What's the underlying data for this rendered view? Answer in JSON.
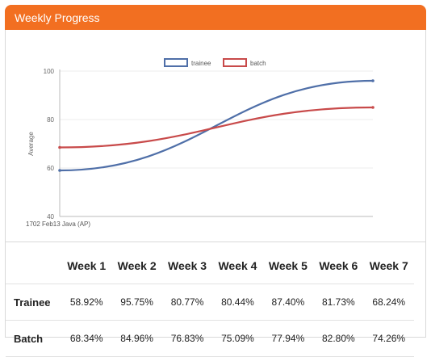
{
  "header": {
    "title": "Weekly Progress",
    "accent": "#f26f21"
  },
  "chart_data": {
    "type": "line",
    "ylabel": "Average",
    "xlabel": "",
    "x_tick_labels": [
      "1702 Feb13 Java (AP)"
    ],
    "ylim": [
      40,
      100
    ],
    "yticks": [
      40,
      60,
      80,
      100
    ],
    "legend_position": "top-center",
    "series": [
      {
        "name": "trainee",
        "color": "#4f6fa8",
        "points": [
          [
            0,
            59
          ],
          [
            1,
            96
          ]
        ]
      },
      {
        "name": "batch",
        "color": "#c84a4a",
        "points": [
          [
            0,
            68.5
          ],
          [
            1,
            85
          ]
        ]
      }
    ]
  },
  "table": {
    "columns": [
      "Week 1",
      "Week 2",
      "Week 3",
      "Week 4",
      "Week 5",
      "Week 6",
      "Week 7"
    ],
    "rows": [
      {
        "label": "Trainee",
        "values": [
          "58.92%",
          "95.75%",
          "80.77%",
          "80.44%",
          "87.40%",
          "81.73%",
          "68.24%"
        ]
      },
      {
        "label": "Batch",
        "values": [
          "68.34%",
          "84.96%",
          "76.83%",
          "75.09%",
          "77.94%",
          "82.80%",
          "74.26%"
        ]
      }
    ]
  }
}
